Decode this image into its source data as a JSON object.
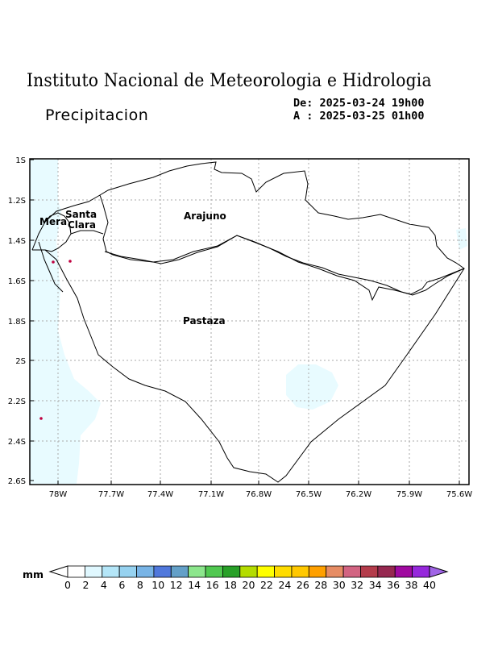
{
  "header": {
    "title": "Instituto Nacional de Meteorologia e Hidrologia",
    "subtitle": "Precipitacion",
    "date_from": "De: 2025-03-24 19h00",
    "date_to": "A : 2025-03-25 01h00"
  },
  "map": {
    "lat_labels": [
      "1S",
      "1.2S",
      "1.4S",
      "1.6S",
      "1.8S",
      "2S",
      "2.2S",
      "2.4S",
      "2.6S"
    ],
    "lon_labels": [
      "78W",
      "77.7W",
      "77.4W",
      "77.1W",
      "76.8W",
      "76.5W",
      "76.2W",
      "75.9W",
      "75.6W"
    ],
    "places": {
      "arajuno": "Arajuno",
      "santa": "Santa",
      "clara": "Clara",
      "mera": "Mera",
      "pastaza": "Pastaza"
    },
    "grid": true
  },
  "colorbar": {
    "unit": "mm",
    "labels": [
      "0",
      "2",
      "4",
      "6",
      "8",
      "10",
      "12",
      "14",
      "16",
      "18",
      "20",
      "22",
      "24",
      "26",
      "28",
      "30",
      "32",
      "34",
      "36",
      "38",
      "40"
    ],
    "colors": [
      "#ffffff",
      "#e0f8ff",
      "#b4e6f8",
      "#96d2f0",
      "#78b4e6",
      "#5078dc",
      "#64a0c8",
      "#8ce68c",
      "#50c850",
      "#28a028",
      "#b4dc00",
      "#ffff00",
      "#ffdc00",
      "#ffc800",
      "#ffa000",
      "#e68c64",
      "#d26482",
      "#b43c4b",
      "#962850",
      "#a00aa0",
      "#9628dc",
      "#a064e6"
    ]
  }
}
